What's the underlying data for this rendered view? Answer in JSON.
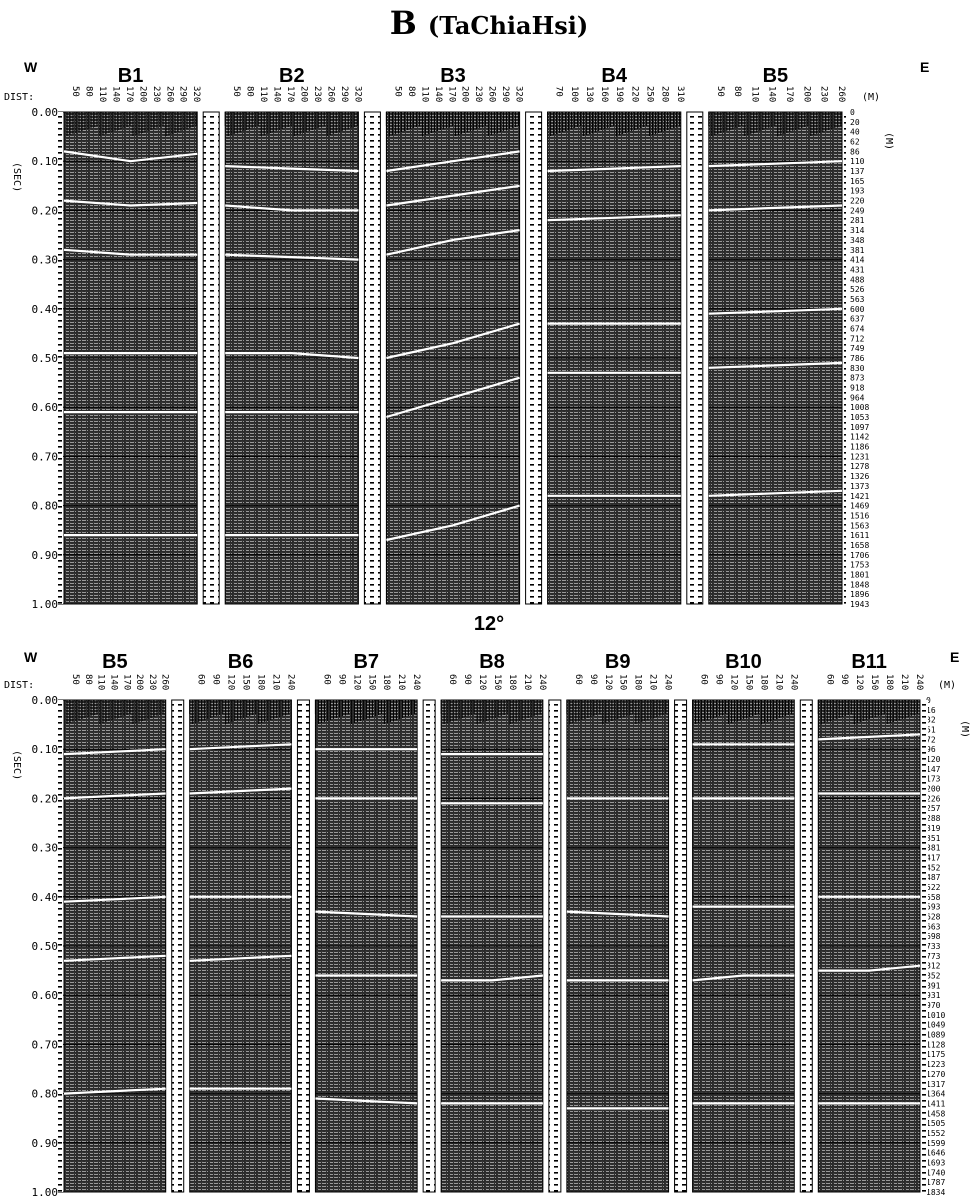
{
  "title": {
    "main": "B",
    "sub": "(TaChiaHsi)"
  },
  "divider_label": "12°",
  "panels": [
    {
      "id": "top",
      "west_label": "W",
      "east_label": "E",
      "dist_label": "DIST:",
      "time_unit": "(SEC)",
      "depth_unit_top": "(M)",
      "depth_unit_side": "(M)",
      "time_ticks": [
        "0.00",
        "0.10",
        "0.20",
        "0.30",
        "0.40",
        "0.50",
        "0.60",
        "0.70",
        "0.80",
        "0.90",
        "1.00"
      ],
      "depth_ticks": [
        "0",
        "20",
        "40",
        "62",
        "86",
        "110",
        "137",
        "165",
        "193",
        "220",
        "249",
        "281",
        "314",
        "348",
        "381",
        "414",
        "431",
        "488",
        "526",
        "563",
        "600",
        "637",
        "674",
        "712",
        "749",
        "786",
        "830",
        "873",
        "918",
        "964",
        "1008",
        "1053",
        "1097",
        "1142",
        "1186",
        "1231",
        "1278",
        "1326",
        "1373",
        "1421",
        "1469",
        "1516",
        "1563",
        "1611",
        "1658",
        "1706",
        "1753",
        "1801",
        "1848",
        "1896",
        "1943"
      ],
      "sections": [
        {
          "name": "B1",
          "dist_ticks": [
            "50",
            "80",
            "110",
            "140",
            "170",
            "200",
            "230",
            "260",
            "290",
            "320"
          ],
          "reflectors": [
            [
              0.08,
              0.1,
              0.085
            ],
            [
              0.18,
              0.19,
              0.185
            ],
            [
              0.28,
              0.29,
              0.29
            ],
            [
              0.49,
              0.49,
              0.49
            ],
            [
              0.61,
              0.61,
              0.61
            ],
            [
              0.86,
              0.86,
              0.86
            ]
          ]
        },
        {
          "name": "B2",
          "dist_ticks": [
            "50",
            "80",
            "110",
            "140",
            "170",
            "200",
            "230",
            "260",
            "290",
            "320"
          ],
          "reflectors": [
            [
              0.11,
              0.115,
              0.12
            ],
            [
              0.19,
              0.2,
              0.2
            ],
            [
              0.29,
              0.295,
              0.3
            ],
            [
              0.49,
              0.49,
              0.5
            ],
            [
              0.61,
              0.61,
              0.61
            ],
            [
              0.86,
              0.86,
              0.86
            ]
          ]
        },
        {
          "name": "B3",
          "dist_ticks": [
            "50",
            "80",
            "110",
            "140",
            "170",
            "200",
            "230",
            "260",
            "290",
            "320"
          ],
          "reflectors": [
            [
              0.12,
              0.1,
              0.08
            ],
            [
              0.19,
              0.17,
              0.15
            ],
            [
              0.29,
              0.26,
              0.24
            ],
            [
              0.5,
              0.47,
              0.43
            ],
            [
              0.62,
              0.58,
              0.54
            ],
            [
              0.87,
              0.84,
              0.8
            ]
          ]
        },
        {
          "name": "B4",
          "dist_ticks": [
            "70",
            "100",
            "130",
            "160",
            "190",
            "220",
            "250",
            "280",
            "310"
          ],
          "reflectors": [
            [
              0.12,
              0.115,
              0.11
            ],
            [
              0.22,
              0.215,
              0.21
            ],
            [
              0.43,
              0.43,
              0.43
            ],
            [
              0.53,
              0.53,
              0.53
            ],
            [
              0.78,
              0.78,
              0.78
            ]
          ]
        },
        {
          "name": "B5",
          "dist_ticks": [
            "50",
            "80",
            "110",
            "140",
            "170",
            "200",
            "230",
            "260"
          ],
          "reflectors": [
            [
              0.11,
              0.105,
              0.1
            ],
            [
              0.2,
              0.195,
              0.19
            ],
            [
              0.41,
              0.405,
              0.4
            ],
            [
              0.52,
              0.515,
              0.51
            ],
            [
              0.78,
              0.775,
              0.77
            ]
          ]
        }
      ]
    },
    {
      "id": "bottom",
      "west_label": "W",
      "east_label": "E",
      "dist_label": "DIST:",
      "time_unit": "(SEC)",
      "depth_unit_top": "(M)",
      "depth_unit_side": "(M)",
      "time_ticks": [
        "0.00",
        "0.10",
        "0.20",
        "0.30",
        "0.40",
        "0.50",
        "0.60",
        "0.70",
        "0.80",
        "0.90",
        "1.00"
      ],
      "depth_ticks": [
        "0",
        "16",
        "32",
        "51",
        "72",
        "96",
        "120",
        "147",
        "173",
        "200",
        "226",
        "257",
        "288",
        "319",
        "351",
        "381",
        "417",
        "452",
        "487",
        "522",
        "558",
        "593",
        "628",
        "663",
        "698",
        "733",
        "773",
        "812",
        "852",
        "891",
        "931",
        "970",
        "1010",
        "1049",
        "1089",
        "1128",
        "1175",
        "1223",
        "1270",
        "1317",
        "1364",
        "1411",
        "1458",
        "1505",
        "1552",
        "1599",
        "1646",
        "1693",
        "1740",
        "1787",
        "1834"
      ],
      "sections": [
        {
          "name": "B5",
          "dist_ticks": [
            "50",
            "80",
            "110",
            "140",
            "170",
            "200",
            "230",
            "260"
          ],
          "reflectors": [
            [
              0.11,
              0.105,
              0.1
            ],
            [
              0.2,
              0.195,
              0.19
            ],
            [
              0.41,
              0.405,
              0.4
            ],
            [
              0.53,
              0.525,
              0.52
            ],
            [
              0.8,
              0.795,
              0.79
            ]
          ]
        },
        {
          "name": "B6",
          "dist_ticks": [
            "60",
            "90",
            "120",
            "150",
            "180",
            "210",
            "240"
          ],
          "reflectors": [
            [
              0.1,
              0.095,
              0.09
            ],
            [
              0.19,
              0.185,
              0.18
            ],
            [
              0.4,
              0.4,
              0.4
            ],
            [
              0.53,
              0.525,
              0.52
            ],
            [
              0.79,
              0.79,
              0.79
            ]
          ]
        },
        {
          "name": "B7",
          "dist_ticks": [
            "60",
            "90",
            "120",
            "150",
            "180",
            "210",
            "240"
          ],
          "reflectors": [
            [
              0.1,
              0.1,
              0.1
            ],
            [
              0.2,
              0.2,
              0.2
            ],
            [
              0.43,
              0.435,
              0.44
            ],
            [
              0.56,
              0.56,
              0.56
            ],
            [
              0.81,
              0.815,
              0.82
            ]
          ]
        },
        {
          "name": "B8",
          "dist_ticks": [
            "60",
            "90",
            "120",
            "150",
            "180",
            "210",
            "240"
          ],
          "reflectors": [
            [
              0.11,
              0.11,
              0.11
            ],
            [
              0.21,
              0.21,
              0.21
            ],
            [
              0.44,
              0.44,
              0.44
            ],
            [
              0.57,
              0.57,
              0.56
            ],
            [
              0.82,
              0.82,
              0.82
            ]
          ]
        },
        {
          "name": "B9",
          "dist_ticks": [
            "60",
            "90",
            "120",
            "150",
            "180",
            "210",
            "240"
          ],
          "reflectors": [
            [
              0.2,
              0.2,
              0.2
            ],
            [
              0.43,
              0.435,
              0.44
            ],
            [
              0.57,
              0.57,
              0.57
            ],
            [
              0.83,
              0.83,
              0.83
            ]
          ]
        },
        {
          "name": "B10",
          "dist_ticks": [
            "60",
            "90",
            "120",
            "150",
            "180",
            "210",
            "240"
          ],
          "reflectors": [
            [
              0.09,
              0.09,
              0.09
            ],
            [
              0.2,
              0.2,
              0.2
            ],
            [
              0.42,
              0.42,
              0.42
            ],
            [
              0.57,
              0.56,
              0.56
            ],
            [
              0.82,
              0.82,
              0.82
            ]
          ]
        },
        {
          "name": "B11",
          "dist_ticks": [
            "60",
            "90",
            "120",
            "150",
            "180",
            "210",
            "240"
          ],
          "reflectors": [
            [
              0.08,
              0.075,
              0.07
            ],
            [
              0.19,
              0.19,
              0.19
            ],
            [
              0.4,
              0.4,
              0.4
            ],
            [
              0.55,
              0.55,
              0.54
            ],
            [
              0.82,
              0.82,
              0.82
            ]
          ]
        }
      ]
    }
  ]
}
